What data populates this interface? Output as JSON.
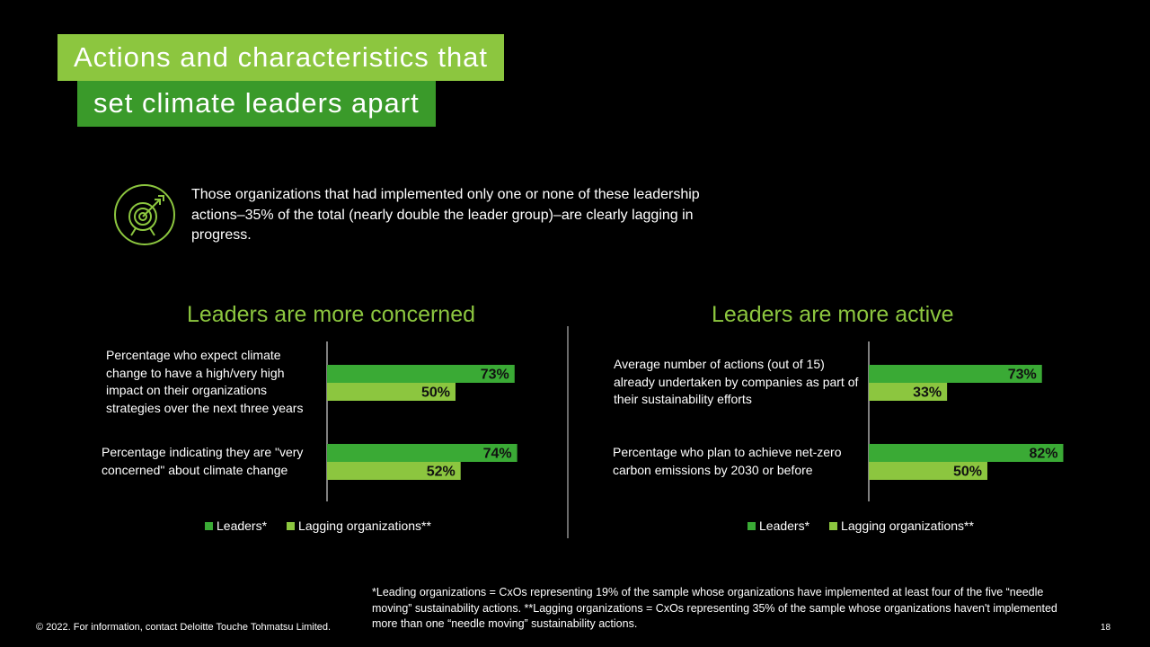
{
  "title": {
    "line1": "Actions and characteristics that",
    "line2": "set climate leaders apart"
  },
  "intro": {
    "icon": "target-icon",
    "text": "Those organizations that had implemented only one or none of these leadership actions–35% of the total (nearly double the leader group)–are clearly lagging in progress."
  },
  "colors": {
    "leaders": "#3aaa35",
    "lagging": "#8cc63f",
    "title_primary": "#8cc63f",
    "title_secondary": "#3a9a2a",
    "chart_title": "#8cc63f"
  },
  "chart_data": [
    {
      "type": "bar",
      "orientation": "horizontal",
      "title": "Leaders are more concerned",
      "categories": [
        "Percentage who expect climate change to have a high/very high impact on their organizations strategies over the next three years",
        "Percentage indicating they are \"very concerned\" about climate change"
      ],
      "series": [
        {
          "name": "Leaders*",
          "values": [
            73,
            74
          ],
          "labels": [
            "73%",
            "74%"
          ]
        },
        {
          "name": "Lagging organizations**",
          "values": [
            50,
            52
          ],
          "labels": [
            "50%",
            "52%"
          ]
        }
      ],
      "xlim": [
        0,
        100
      ],
      "grid": false,
      "legend": "bottom"
    },
    {
      "type": "bar",
      "orientation": "horizontal",
      "title": "Leaders are more active",
      "categories": [
        "Average number of actions (out of 15) already undertaken by companies as part of their sustainability efforts",
        "Percentage  who plan to achieve net-zero carbon emissions by 2030 or before"
      ],
      "series": [
        {
          "name": "Leaders*",
          "values": [
            73,
            82
          ],
          "labels": [
            "73%",
            "82%"
          ]
        },
        {
          "name": "Lagging organizations**",
          "values": [
            33,
            50
          ],
          "labels": [
            "33%",
            "50%"
          ]
        }
      ],
      "xlim": [
        0,
        100
      ],
      "grid": false,
      "legend": "bottom"
    }
  ],
  "footnote": "*Leading organizations = CxOs representing 19% of the sample whose organizations have implemented at least four of the five “needle moving” sustainability actions. **Lagging organizations = CxOs representing 35% of the sample whose organizations haven't implemented more than one “needle moving” sustainability actions.",
  "copyright": "© 2022. For information, contact Deloitte Touche Tohmatsu Limited.",
  "page_number": "18"
}
